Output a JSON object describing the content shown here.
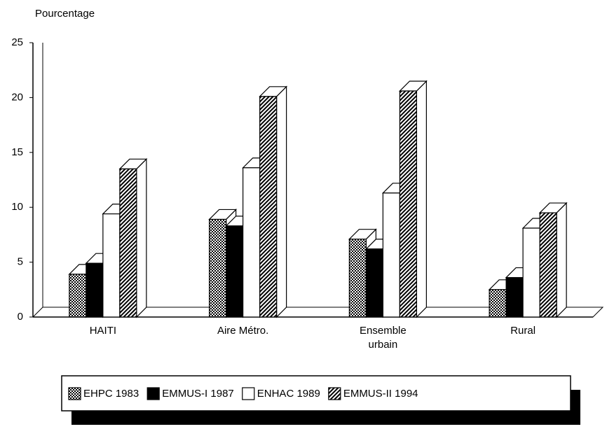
{
  "chart_data": {
    "type": "bar3d",
    "y_label": "Pourcentage",
    "categories": [
      "HAITI",
      "Aire Métro.",
      "Ensemble urbain",
      "Rural"
    ],
    "series": [
      {
        "name": "EHPC 1983",
        "color": "#777777",
        "pattern": "crosshatch",
        "values": [
          3.9,
          8.9,
          7.1,
          2.5
        ]
      },
      {
        "name": "EMMUS-I 1987",
        "color": "#000000",
        "pattern": "solid",
        "values": [
          4.9,
          8.3,
          6.2,
          3.6
        ]
      },
      {
        "name": "ENHAC 1989",
        "color": "#ffffff",
        "pattern": "solid",
        "values": [
          9.4,
          13.6,
          11.3,
          8.1
        ]
      },
      {
        "name": "EMMUS-II 1994",
        "color": "#555555",
        "pattern": "diagonal",
        "values": [
          13.5,
          20.1,
          20.6,
          9.5
        ]
      }
    ],
    "ylim": [
      0,
      25
    ],
    "yticks": [
      0,
      5,
      10,
      15,
      20,
      25
    ],
    "grid": false,
    "legend": "bottom"
  }
}
